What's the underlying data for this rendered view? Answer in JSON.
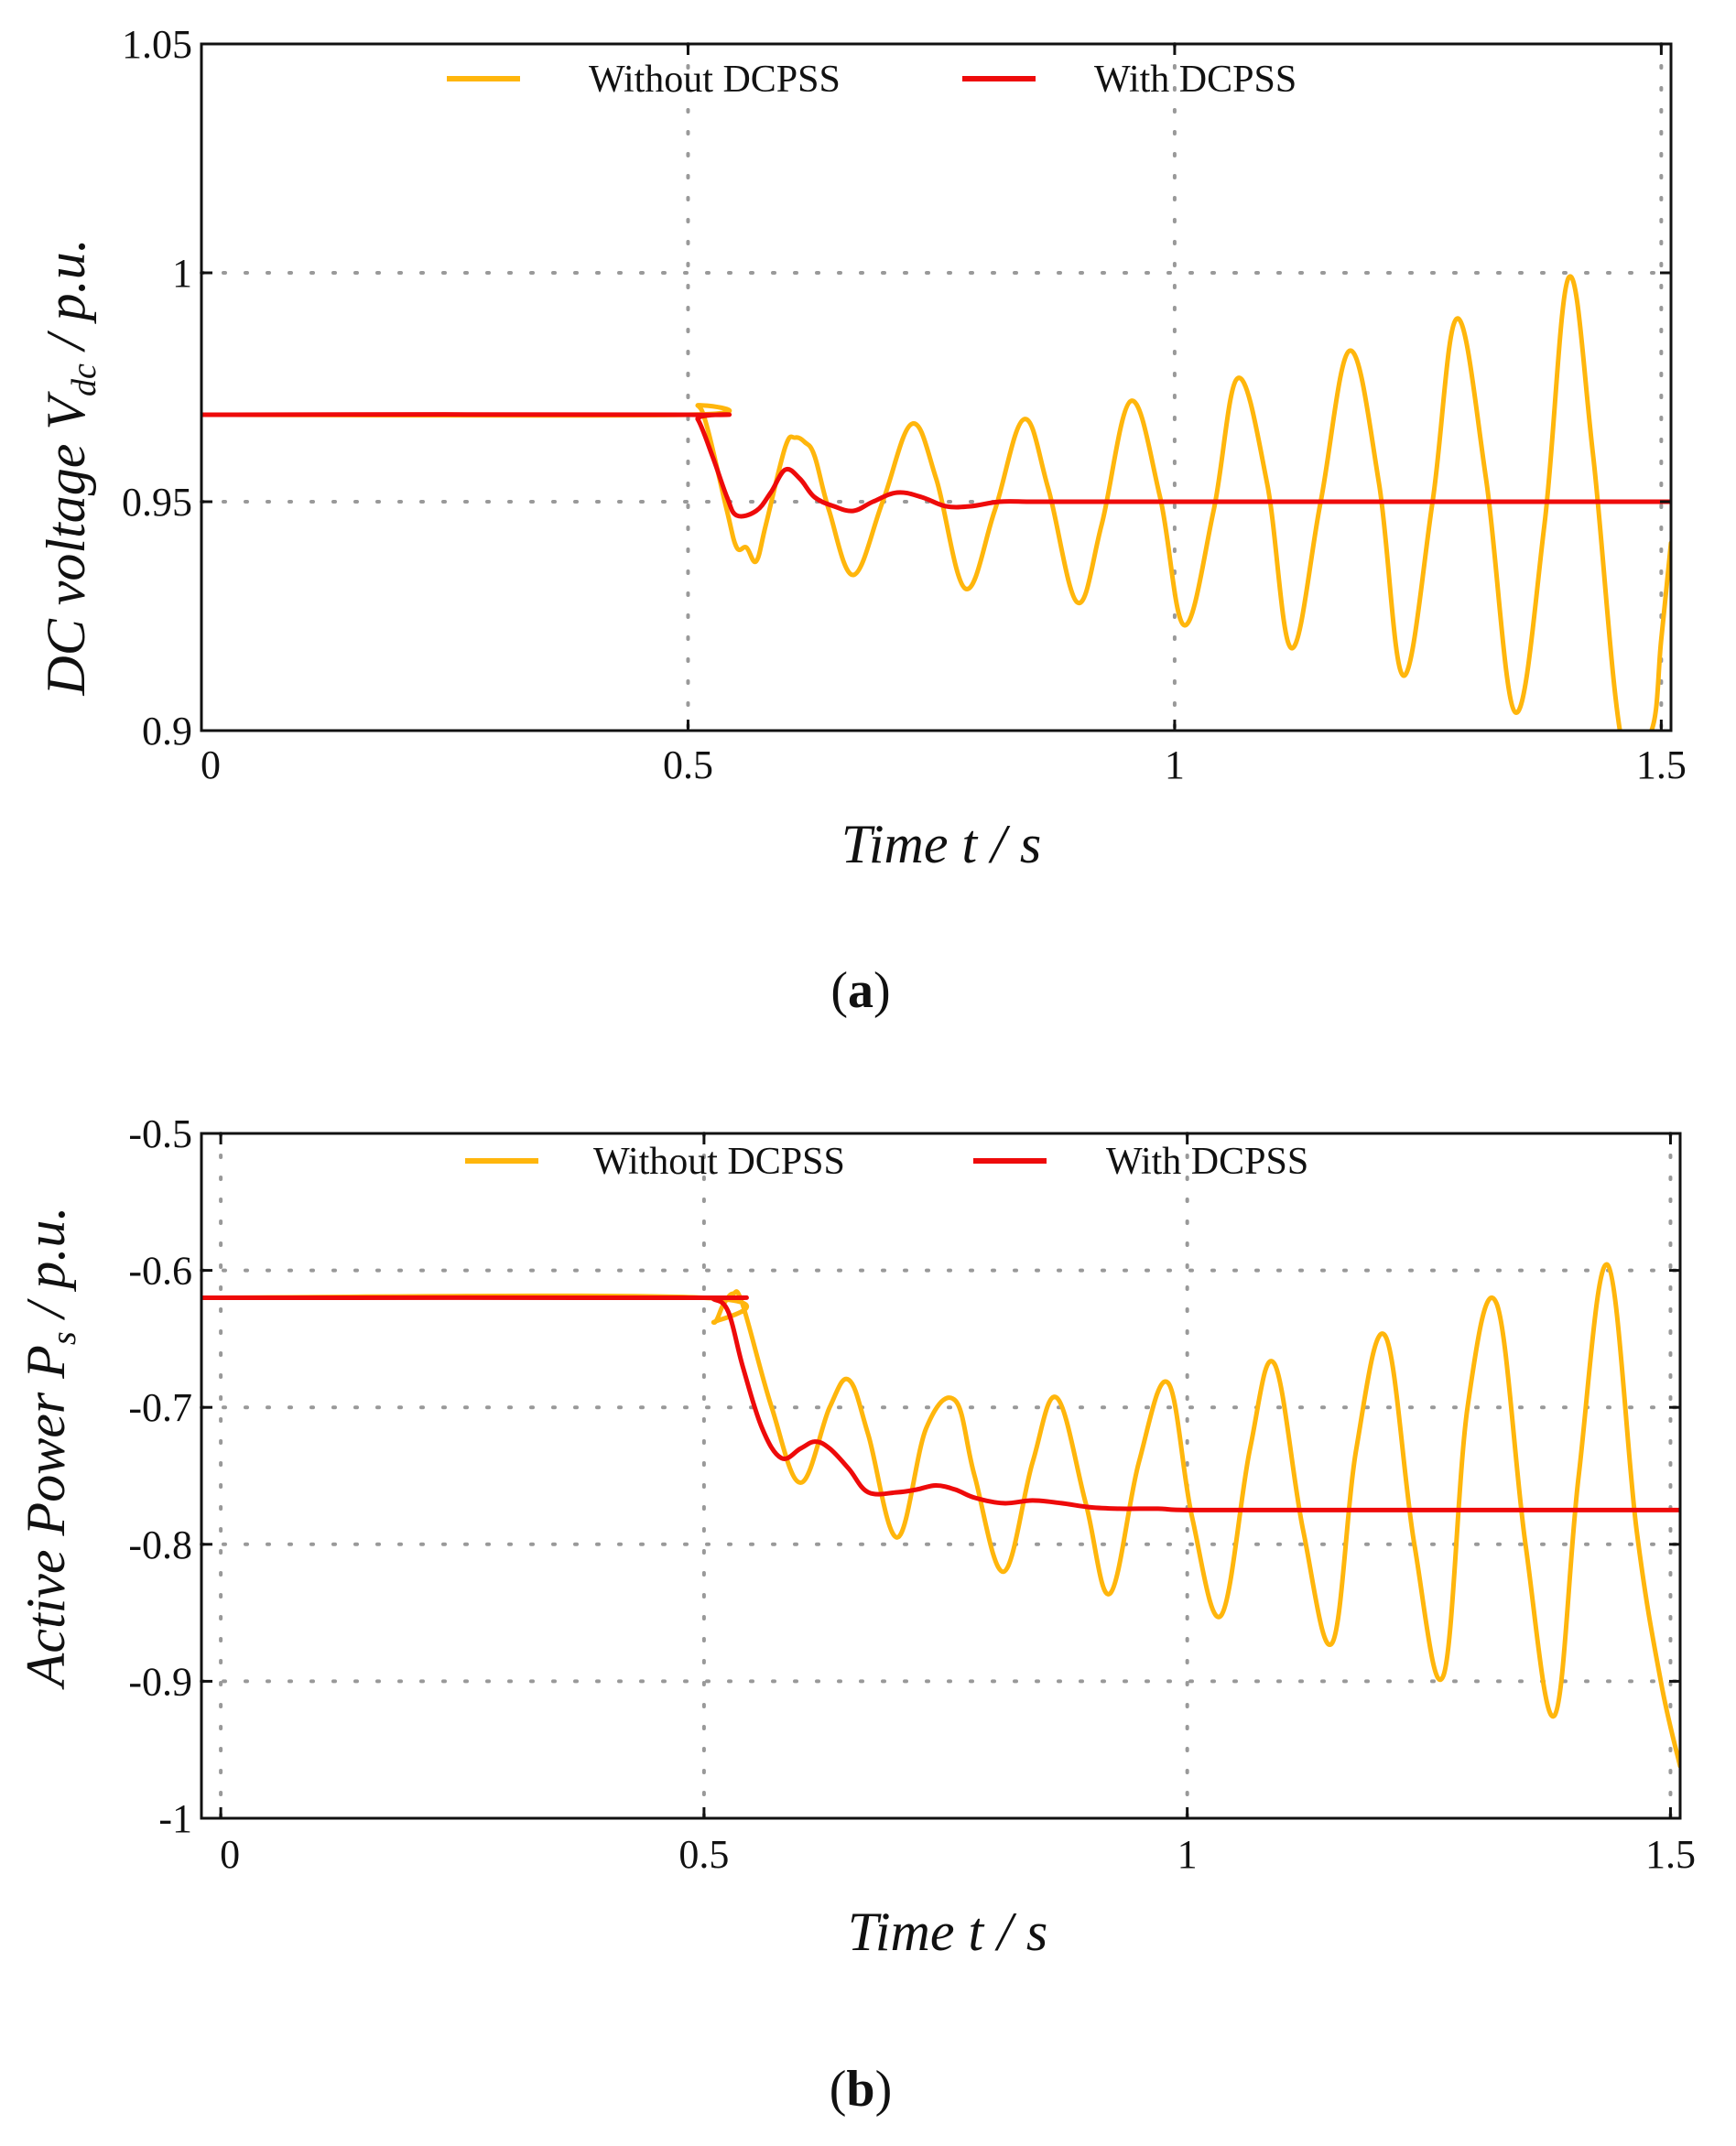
{
  "chart_data": [
    {
      "type": "line",
      "panel": "a",
      "caption_letter": "a",
      "xlabel": "Time t / s",
      "ylabel_main": "DC voltage V",
      "ylabel_sub": "dc",
      "ylabel_unit": " / p.u.",
      "xlim": [
        0,
        1.51
      ],
      "ylim": [
        0.9,
        1.05
      ],
      "x_ticks": [
        0,
        0.5,
        1,
        1.5
      ],
      "x_tick_labels": [
        "0",
        "0.5",
        "1",
        "1.5"
      ],
      "y_ticks": [
        0.9,
        0.95,
        1,
        1.05
      ],
      "y_tick_labels": [
        "0.9",
        "0.95",
        "1",
        "1.05"
      ],
      "grid": true,
      "legend_position": "top",
      "step_time": 0.5,
      "series": [
        {
          "name": "Without DCPSS",
          "color": "#ffb60c",
          "initial": 0.969,
          "final": 0.95,
          "x": [
            0,
            0.5,
            0.51,
            0.52,
            0.54,
            0.55,
            0.56,
            0.57,
            0.58,
            0.6,
            0.61,
            0.62,
            0.63,
            0.645,
            0.67,
            0.7,
            0.73,
            0.755,
            0.785,
            0.815,
            0.845,
            0.87,
            0.9,
            0.925,
            0.955,
            0.985,
            1.01,
            1.04,
            1.065,
            1.095,
            1.12,
            1.15,
            1.18,
            1.21,
            1.235,
            1.265,
            1.29,
            1.32,
            1.35,
            1.38,
            1.405,
            1.43,
            1.46,
            1.49,
            1.5,
            1.51
          ],
          "values": [
            0.969,
            0.969,
            0.971,
            0.966,
            0.948,
            0.94,
            0.94,
            0.937,
            0.945,
            0.962,
            0.964,
            0.963,
            0.96,
            0.948,
            0.934,
            0.95,
            0.967,
            0.955,
            0.931,
            0.948,
            0.968,
            0.953,
            0.928,
            0.945,
            0.972,
            0.951,
            0.923,
            0.948,
            0.977,
            0.954,
            0.918,
            0.95,
            0.983,
            0.954,
            0.912,
            0.95,
            0.99,
            0.955,
            0.904,
            0.945,
            0.999,
            0.96,
            0.897,
            0.9,
            0.92,
            0.941
          ]
        },
        {
          "name": "With DCPSS",
          "color": "#ee0a0a",
          "initial": 0.969,
          "final": 0.95,
          "x": [
            0,
            0.5,
            0.51,
            0.525,
            0.54,
            0.55,
            0.57,
            0.585,
            0.6,
            0.615,
            0.63,
            0.65,
            0.67,
            0.69,
            0.715,
            0.74,
            0.765,
            0.79,
            0.82,
            0.85,
            0.88,
            0.92,
            0.96,
            1.0,
            1.1,
            1.2,
            1.3,
            1.4,
            1.51
          ],
          "values": [
            0.969,
            0.969,
            0.968,
            0.96,
            0.951,
            0.947,
            0.948,
            0.952,
            0.957,
            0.955,
            0.951,
            0.949,
            0.948,
            0.95,
            0.952,
            0.951,
            0.949,
            0.949,
            0.95,
            0.95,
            0.95,
            0.95,
            0.95,
            0.95,
            0.95,
            0.95,
            0.95,
            0.95,
            0.95
          ]
        }
      ]
    },
    {
      "type": "line",
      "panel": "b",
      "caption_letter": "b",
      "xlabel": "Time t / s",
      "ylabel_main": "Active Power P",
      "ylabel_sub": "s",
      "ylabel_unit": "  / p.u.",
      "xlim": [
        -0.02,
        1.51
      ],
      "ylim": [
        -1.0,
        -0.5
      ],
      "x_ticks": [
        0,
        0.5,
        1,
        1.5
      ],
      "x_tick_labels": [
        "0",
        "0.5",
        "1",
        "1.5"
      ],
      "y_ticks": [
        -1.0,
        -0.9,
        -0.8,
        -0.7,
        -0.6,
        -0.5
      ],
      "y_tick_labels": [
        "-1",
        "-0.9",
        "-0.8",
        "-0.7",
        "-0.6",
        "-0.5"
      ],
      "grid": true,
      "legend_position": "top",
      "step_time": 0.5,
      "series": [
        {
          "name": "Without DCPSS",
          "color": "#ffb60c",
          "initial": -0.62,
          "final": -0.775,
          "x": [
            -0.02,
            0.5,
            0.51,
            0.52,
            0.53,
            0.54,
            0.57,
            0.6,
            0.63,
            0.65,
            0.67,
            0.7,
            0.73,
            0.76,
            0.78,
            0.81,
            0.84,
            0.865,
            0.895,
            0.92,
            0.95,
            0.98,
            1.005,
            1.035,
            1.065,
            1.09,
            1.12,
            1.15,
            1.175,
            1.205,
            1.235,
            1.265,
            1.29,
            1.32,
            1.35,
            1.38,
            1.405,
            1.435,
            1.465,
            1.49,
            1.51
          ],
          "values": [
            -0.62,
            -0.62,
            -0.638,
            -0.625,
            -0.617,
            -0.625,
            -0.7,
            -0.755,
            -0.7,
            -0.68,
            -0.72,
            -0.795,
            -0.715,
            -0.695,
            -0.75,
            -0.82,
            -0.74,
            -0.693,
            -0.77,
            -0.836,
            -0.74,
            -0.682,
            -0.78,
            -0.852,
            -0.73,
            -0.668,
            -0.79,
            -0.872,
            -0.73,
            -0.648,
            -0.8,
            -0.896,
            -0.7,
            -0.624,
            -0.8,
            -0.925,
            -0.75,
            -0.596,
            -0.79,
            -0.9,
            -0.962
          ]
        },
        {
          "name": "With DCPSS",
          "color": "#ee0a0a",
          "initial": -0.62,
          "final": -0.775,
          "x": [
            -0.02,
            0.5,
            0.51,
            0.525,
            0.54,
            0.56,
            0.58,
            0.6,
            0.615,
            0.63,
            0.65,
            0.67,
            0.7,
            0.72,
            0.74,
            0.76,
            0.78,
            0.81,
            0.84,
            0.87,
            0.9,
            0.93,
            0.97,
            1.0,
            1.1,
            1.2,
            1.3,
            1.4,
            1.51
          ],
          "values": [
            -0.62,
            -0.62,
            -0.621,
            -0.63,
            -0.67,
            -0.715,
            -0.737,
            -0.73,
            -0.725,
            -0.73,
            -0.745,
            -0.762,
            -0.762,
            -0.76,
            -0.757,
            -0.76,
            -0.766,
            -0.77,
            -0.768,
            -0.77,
            -0.773,
            -0.774,
            -0.774,
            -0.775,
            -0.775,
            -0.775,
            -0.775,
            -0.775,
            -0.775
          ]
        }
      ]
    }
  ]
}
